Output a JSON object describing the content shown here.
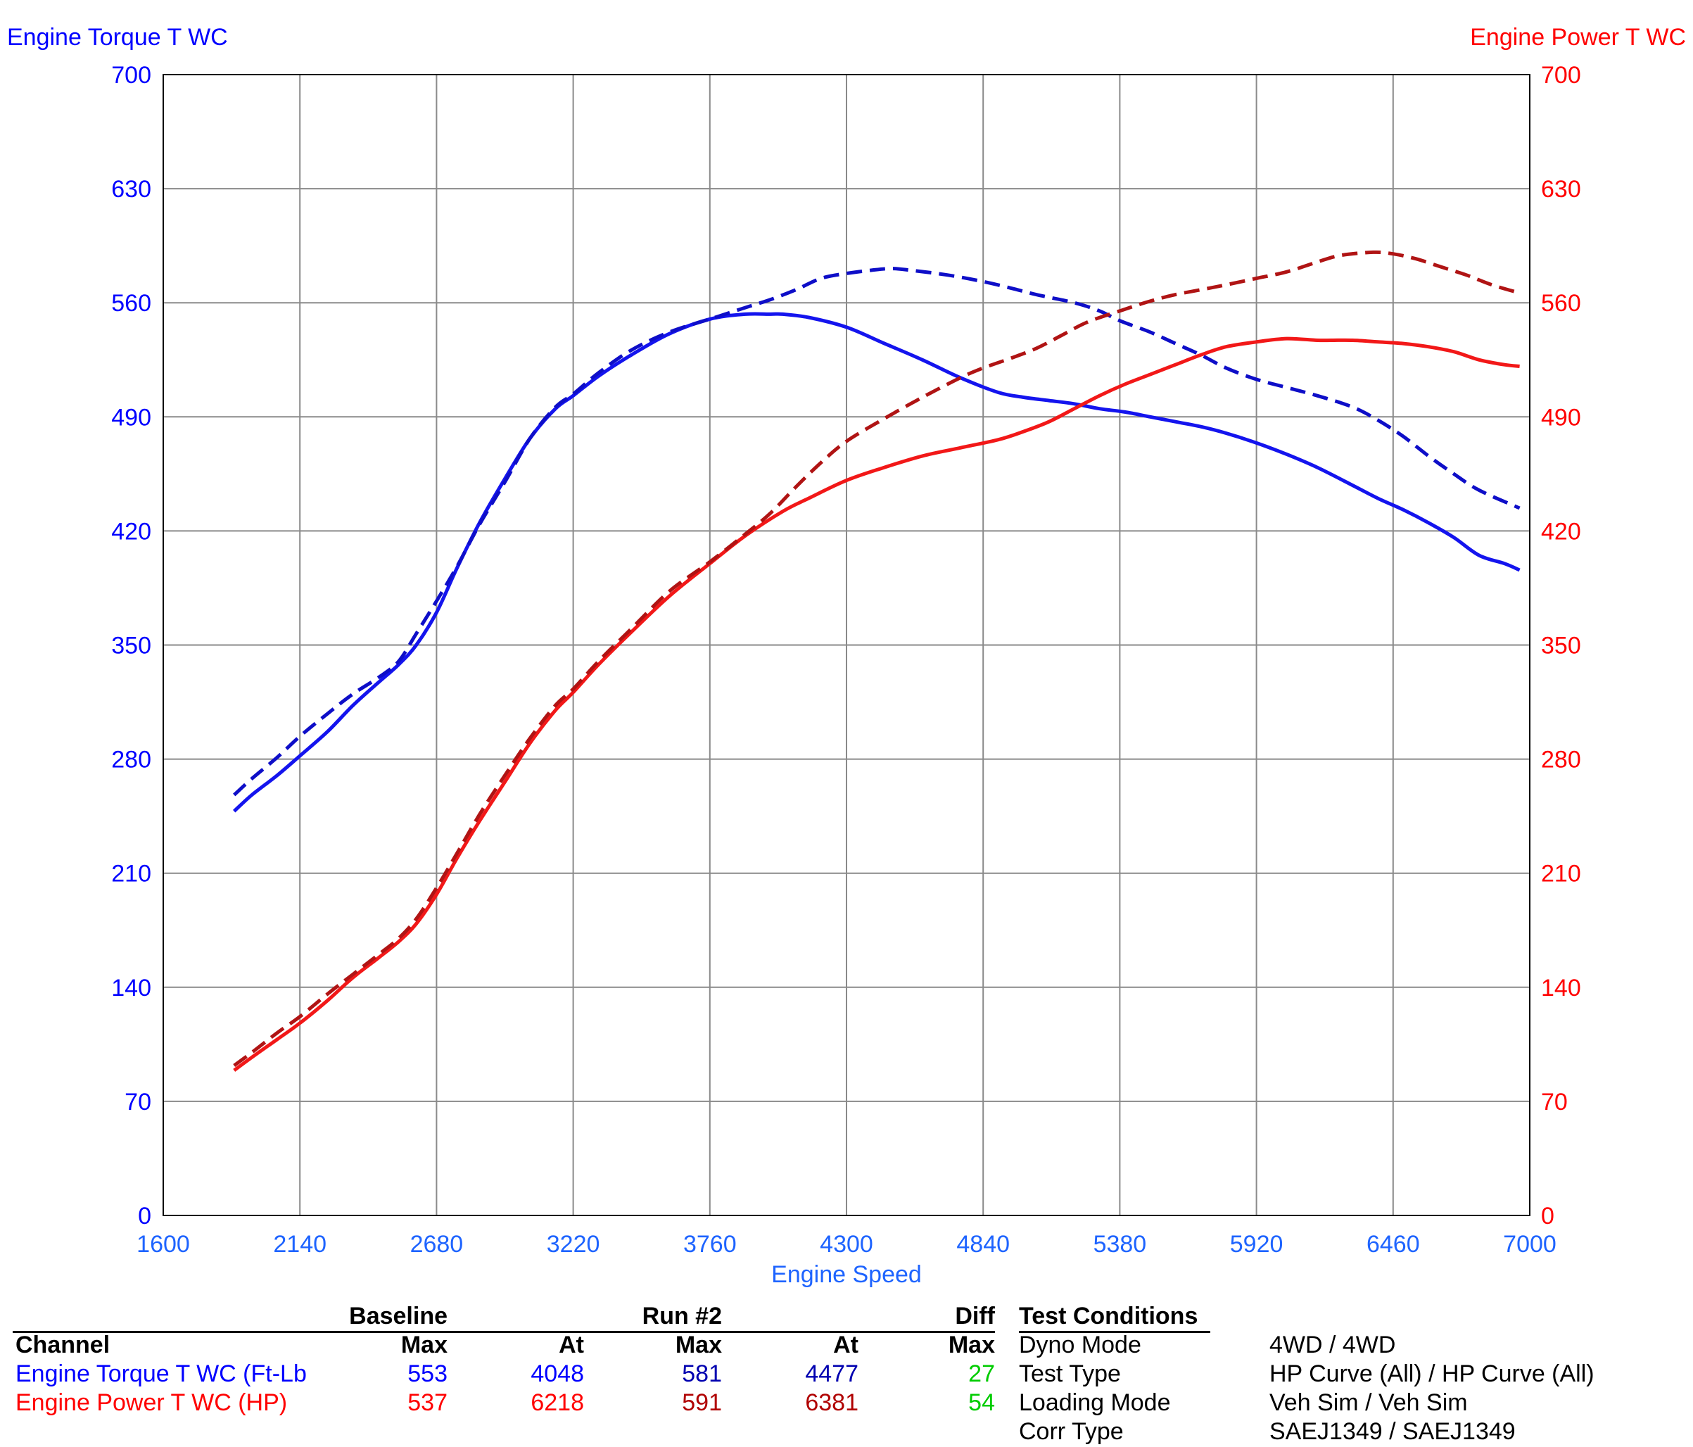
{
  "chart_data": {
    "type": "line",
    "left_axis_title": "Engine Torque T WC",
    "right_axis_title": "Engine Power T WC",
    "xlabel": "Engine Speed",
    "xlim": [
      1600,
      7000
    ],
    "ylim_left": [
      0,
      700
    ],
    "ylim_right": [
      0,
      700
    ],
    "x_ticks": [
      "1600",
      "2140",
      "2680",
      "3220",
      "3760",
      "4300",
      "4840",
      "5380",
      "5920",
      "6460",
      "7000"
    ],
    "y_ticks": [
      "0",
      "70",
      "140",
      "210",
      "280",
      "350",
      "420",
      "490",
      "560",
      "630",
      "700"
    ],
    "grid": true,
    "colors": {
      "torque": "#0000ff",
      "power": "#ff0000",
      "torque_run2": "#0000b0",
      "power_run2": "#b00000",
      "diff": "#00cc00"
    },
    "series": [
      {
        "key": "torque_baseline",
        "axis": "left",
        "style": "solid",
        "color": "#1414ee",
        "x": [
          1880,
          1950,
          2050,
          2140,
          2250,
          2350,
          2450,
          2530,
          2600,
          2680,
          2760,
          2850,
          2950,
          3050,
          3150,
          3220,
          3320,
          3450,
          3600,
          3760,
          3900,
          4000,
          4048,
          4150,
          4300,
          4450,
          4600,
          4750,
          4900,
          5000,
          5100,
          5200,
          5300,
          5400,
          5500,
          5600,
          5700,
          5800,
          5920,
          6040,
          6160,
          6300,
          6400,
          6500,
          6600,
          6700,
          6800,
          6900,
          6960
        ],
        "y": [
          248,
          258,
          270,
          282,
          297,
          313,
          327,
          338,
          350,
          370,
          397,
          425,
          452,
          477,
          495,
          503,
          515,
          528,
          541,
          550,
          553,
          553,
          553,
          551,
          545,
          535,
          525,
          514,
          505,
          502,
          500,
          498,
          495,
          493,
          490,
          487,
          484,
          480,
          474,
          467,
          459,
          448,
          440,
          433,
          425,
          416,
          405,
          400,
          396
        ]
      },
      {
        "key": "torque_run2",
        "axis": "left",
        "style": "dashed",
        "color": "#0e0ec8",
        "x": [
          1880,
          1950,
          2050,
          2140,
          2250,
          2350,
          2450,
          2530,
          2600,
          2680,
          2760,
          2850,
          2950,
          3050,
          3150,
          3220,
          3320,
          3450,
          3600,
          3760,
          3900,
          4000,
          4100,
          4200,
          4300,
          4400,
          4477,
          4550,
          4700,
          4840,
          4950,
          5050,
          5200,
          5300,
          5380,
          5500,
          5600,
          5700,
          5800,
          5920,
          6040,
          6160,
          6300,
          6400,
          6500,
          6600,
          6700,
          6800,
          6960
        ],
        "y": [
          258,
          268,
          281,
          294,
          308,
          320,
          330,
          340,
          357,
          377,
          398,
          424,
          450,
          477,
          496,
          504,
          517,
          531,
          542,
          550,
          557,
          562,
          568,
          575,
          578,
          580,
          581,
          580,
          577,
          573,
          569,
          565,
          560,
          555,
          549,
          542,
          535,
          528,
          520,
          513,
          508,
          503,
          496,
          488,
          478,
          466,
          455,
          445,
          434
        ]
      },
      {
        "key": "power_baseline",
        "axis": "right",
        "style": "solid",
        "color": "#f21818",
        "x": [
          1880,
          1950,
          2050,
          2140,
          2250,
          2350,
          2450,
          2530,
          2600,
          2680,
          2760,
          2850,
          2950,
          3050,
          3150,
          3220,
          3320,
          3450,
          3600,
          3760,
          3900,
          4048,
          4150,
          4300,
          4450,
          4600,
          4750,
          4900,
          5000,
          5100,
          5200,
          5300,
          5400,
          5500,
          5600,
          5700,
          5800,
          5920,
          6040,
          6160,
          6218,
          6300,
          6400,
          6500,
          6600,
          6700,
          6800,
          6900,
          6960
        ],
        "y": [
          89,
          97,
          108,
          118,
          132,
          146,
          158,
          168,
          179,
          197,
          219,
          242,
          266,
          290,
          310,
          321,
          338,
          358,
          380,
          400,
          417,
          432,
          440,
          451,
          459,
          466,
          471,
          476,
          481,
          487,
          495,
          503,
          510,
          516,
          522,
          528,
          533,
          536,
          538,
          537,
          537,
          537,
          536,
          535,
          533,
          530,
          525,
          522,
          521
        ]
      },
      {
        "key": "power_run2",
        "axis": "right",
        "style": "dashed",
        "color": "#b01414",
        "x": [
          1880,
          1950,
          2050,
          2140,
          2250,
          2350,
          2450,
          2530,
          2600,
          2680,
          2760,
          2850,
          2950,
          3050,
          3150,
          3220,
          3320,
          3450,
          3600,
          3760,
          3900,
          4000,
          4100,
          4200,
          4300,
          4450,
          4600,
          4750,
          4840,
          4950,
          5050,
          5150,
          5250,
          5380,
          5500,
          5600,
          5700,
          5800,
          5920,
          6040,
          6160,
          6250,
          6381,
          6460,
          6550,
          6650,
          6750,
          6850,
          6960
        ],
        "y": [
          92,
          100,
          112,
          122,
          136,
          148,
          160,
          170,
          182,
          201,
          222,
          246,
          270,
          293,
          313,
          323,
          340,
          360,
          383,
          401,
          418,
          431,
          447,
          462,
          475,
          489,
          502,
          514,
          520,
          526,
          532,
          540,
          548,
          555,
          561,
          565,
          568,
          571,
          575,
          579,
          585,
          589,
          591,
          590,
          587,
          582,
          577,
          571,
          566
        ]
      }
    ],
    "table": {
      "group_headers": {
        "baseline": "Baseline",
        "run2": "Run #2",
        "diff": "Diff"
      },
      "columns": {
        "channel": "Channel",
        "max": "Max",
        "at": "At"
      },
      "rows": [
        {
          "channel": "Engine Torque T WC (Ft-Lb",
          "base_max": "553",
          "base_at": "4048",
          "run_max": "581",
          "run_at": "4477",
          "diff": "27"
        },
        {
          "channel": "Engine Power T WC (HP)",
          "base_max": "537",
          "base_at": "6218",
          "run_max": "591",
          "run_at": "6381",
          "diff": "54"
        }
      ]
    },
    "test_conditions": {
      "title": "Test Conditions",
      "rows": [
        {
          "label": "Dyno Mode",
          "value": "4WD / 4WD"
        },
        {
          "label": "Test Type",
          "value": "HP Curve (All) / HP Curve (All)"
        },
        {
          "label": "Loading Mode",
          "value": "Veh Sim / Veh Sim"
        },
        {
          "label": "Corr Type",
          "value": "SAEJ1349 / SAEJ1349"
        }
      ]
    }
  }
}
